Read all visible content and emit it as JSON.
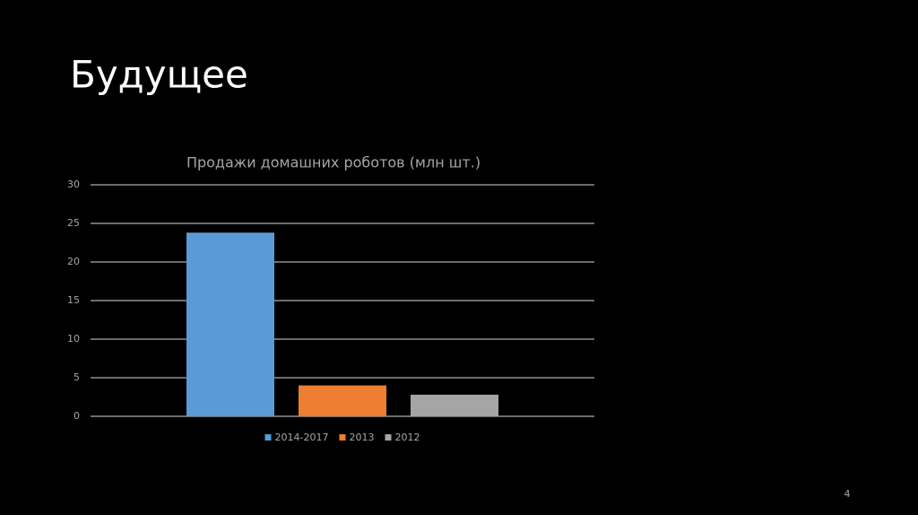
{
  "slide": {
    "title": "Будущее",
    "page_number": "4"
  },
  "chart_data": {
    "type": "bar",
    "title": "Продажи домашних роботов (млн шт.)",
    "categories": [
      null
    ],
    "series": [
      {
        "name": "2014-2017",
        "color": "#5b9bd5",
        "values": [
          23.8
        ]
      },
      {
        "name": "2013",
        "color": "#ed7d31",
        "values": [
          4
        ]
      },
      {
        "name": "2012",
        "color": "#a5a5a5",
        "values": [
          2.8
        ]
      }
    ],
    "ylim": [
      0,
      30
    ],
    "yticks": [
      0,
      5,
      10,
      15,
      20,
      25,
      30
    ],
    "grid": true,
    "legend": "bottom"
  }
}
